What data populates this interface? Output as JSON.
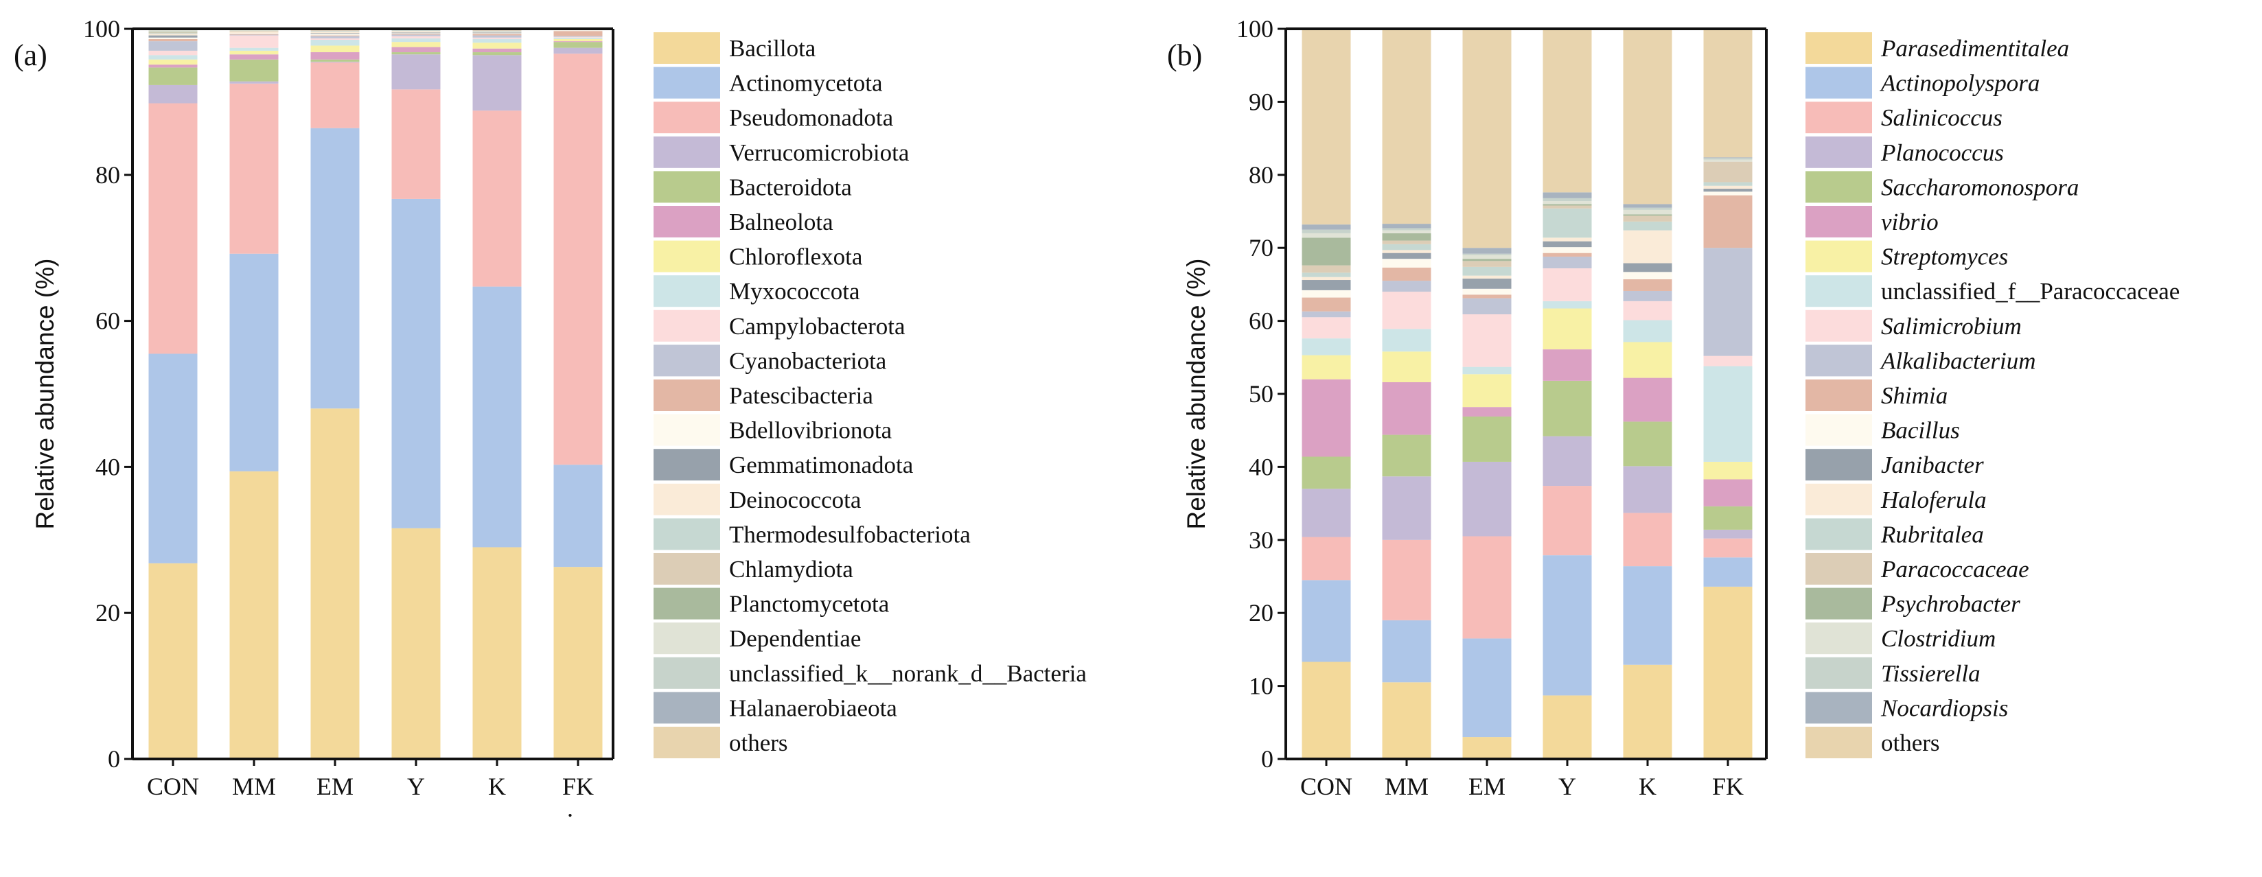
{
  "chart_data": [
    {
      "type": "bar",
      "stacked": true,
      "panel_label": "(a)",
      "ylabel": "Relative abundance (%)",
      "xlabel": "",
      "ylim": [
        0,
        100
      ],
      "yticks": [
        0,
        20,
        40,
        60,
        80,
        100
      ],
      "categories": [
        "CON",
        "MM",
        "EM",
        "Y",
        "K",
        "FK"
      ],
      "legend_position": "right",
      "legend_italic": false,
      "stray_mark": ".",
      "series": [
        {
          "name": "Bacillota",
          "color": "#F3D99A",
          "values": [
            26.8,
            39.4,
            48.0,
            31.6,
            29.0,
            26.3
          ]
        },
        {
          "name": "Actinomycetota",
          "color": "#AEC6E8",
          "values": [
            28.7,
            29.8,
            38.4,
            45.1,
            35.7,
            14.0
          ]
        },
        {
          "name": "Pseudomonadota",
          "color": "#F7BCB8",
          "values": [
            34.3,
            23.3,
            9.0,
            15.0,
            24.1,
            56.3
          ]
        },
        {
          "name": "Verrucomicrobiota",
          "color": "#C4BAD6",
          "values": [
            2.5,
            0.3,
            0.1,
            4.8,
            7.6,
            0.8
          ]
        },
        {
          "name": "Bacteroidota",
          "color": "#B8CB8D",
          "values": [
            2.4,
            3.0,
            0.3,
            0.3,
            0.4,
            0.8
          ]
        },
        {
          "name": "Balneolota",
          "color": "#DBA1C3",
          "values": [
            0.4,
            0.7,
            1.0,
            0.7,
            0.5,
            0.1
          ]
        },
        {
          "name": "Chloroflexota",
          "color": "#F8F1A5",
          "values": [
            0.7,
            0.5,
            0.9,
            0.7,
            0.8,
            0.3
          ]
        },
        {
          "name": "Myxococcota",
          "color": "#CDE5E7",
          "values": [
            0.6,
            0.4,
            0.8,
            0.5,
            0.5,
            0.2
          ]
        },
        {
          "name": "Campylobacterota",
          "color": "#FCDCDC",
          "values": [
            0.6,
            1.7,
            0.2,
            0.3,
            0.2,
            0.1
          ]
        },
        {
          "name": "Cyanobacteriota",
          "color": "#C0C5D6",
          "values": [
            1.3,
            0.1,
            0.3,
            0.2,
            0.3,
            0.1
          ]
        },
        {
          "name": "Patescibacteria",
          "color": "#E3B7A5",
          "values": [
            0.3,
            0.1,
            0.1,
            0.1,
            0.2,
            0.7
          ]
        },
        {
          "name": "Bdellovibrionota",
          "color": "#FEFAEF",
          "values": [
            0.2,
            0.1,
            0.2,
            0.1,
            0.1,
            0.1
          ]
        },
        {
          "name": "Gemmatimonadota",
          "color": "#97A1AB",
          "values": [
            0.3,
            0.0,
            0.1,
            0.1,
            0.1,
            0.0
          ]
        },
        {
          "name": "Deinococcota",
          "color": "#FAEBD8",
          "values": [
            0.2,
            0.2,
            0.2,
            0.2,
            0.1,
            0.1
          ]
        },
        {
          "name": "Thermodesulfobacteriota",
          "color": "#C6D8D2",
          "values": [
            0.1,
            0.0,
            0.1,
            0.1,
            0.1,
            0.0
          ]
        },
        {
          "name": "Chlamydiota",
          "color": "#DCCDB6",
          "values": [
            0.1,
            0.1,
            0.1,
            0.1,
            0.1,
            0.1
          ]
        },
        {
          "name": "Planctomycetota",
          "color": "#A9BA9D",
          "values": [
            0.1,
            0.0,
            0.0,
            0.0,
            0.0,
            0.0
          ]
        },
        {
          "name": "Dependentiae",
          "color": "#E0E3D6",
          "values": [
            0.2,
            0.2,
            0.1,
            0.1,
            0.1,
            0.0
          ]
        },
        {
          "name": "unclassified_k__norank_d__Bacteria",
          "color": "#C7D3CB",
          "values": [
            0.1,
            0.0,
            0.1,
            0.0,
            0.0,
            0.0
          ]
        },
        {
          "name": "Halanaerobiaeota",
          "color": "#A8B3BF",
          "values": [
            0.1,
            0.0,
            0.0,
            0.0,
            0.0,
            0.0
          ]
        },
        {
          "name": "others",
          "color": "#E8D4AE",
          "values": [
            0.0,
            0.1,
            0.0,
            0.0,
            0.0,
            0.0
          ]
        }
      ]
    },
    {
      "type": "bar",
      "stacked": true,
      "panel_label": "(b)",
      "ylabel": "Relative abundance (%)",
      "xlabel": "",
      "ylim": [
        0,
        100
      ],
      "yticks": [
        0,
        10,
        20,
        30,
        40,
        50,
        60,
        70,
        80,
        90,
        100
      ],
      "categories": [
        "CON",
        "MM",
        "EM",
        "Y",
        "K",
        "FK"
      ],
      "legend_position": "right",
      "legend_italic": true,
      "series": [
        {
          "name": "Parasedimentitalea",
          "color": "#F3D99A",
          "values": [
            13.3,
            10.5,
            3.0,
            8.7,
            12.9,
            23.6
          ]
        },
        {
          "name": "Actinopolyspora",
          "color": "#AEC6E8",
          "values": [
            11.2,
            8.5,
            13.5,
            19.2,
            13.5,
            4.0
          ]
        },
        {
          "name": "Salinicoccus",
          "color": "#F7BCB8",
          "values": [
            5.9,
            11.0,
            14.0,
            9.5,
            7.3,
            2.6
          ]
        },
        {
          "name": "Planococcus",
          "color": "#C4BAD6",
          "values": [
            6.6,
            8.7,
            10.2,
            6.8,
            6.4,
            1.2
          ]
        },
        {
          "name": "Saccharomonospora",
          "color": "#B8CB8D",
          "values": [
            4.4,
            5.7,
            6.2,
            7.6,
            6.1,
            3.2
          ]
        },
        {
          "name": "vibrio",
          "color": "#DBA1C3",
          "values": [
            10.6,
            7.2,
            1.3,
            4.3,
            6.0,
            3.7
          ]
        },
        {
          "name": "Streptomyces",
          "color": "#F8F1A5",
          "values": [
            3.3,
            4.2,
            4.5,
            5.6,
            4.9,
            2.4
          ]
        },
        {
          "name": "unclassified_f__Paracoccaceae",
          "color": "#CDE5E7",
          "values": [
            2.3,
            3.1,
            1.0,
            1.0,
            3.0,
            13.1
          ],
          "italic": false
        },
        {
          "name": "Salimicrobium",
          "color": "#FCDCDC",
          "values": [
            2.9,
            5.1,
            7.2,
            4.5,
            2.6,
            1.4
          ]
        },
        {
          "name": "Alkalibacterium",
          "color": "#C0C5D6",
          "values": [
            0.8,
            1.5,
            2.2,
            1.6,
            1.4,
            14.8
          ]
        },
        {
          "name": "Shimia",
          "color": "#E3B7A5",
          "values": [
            1.9,
            1.8,
            0.5,
            0.5,
            1.6,
            7.2
          ]
        },
        {
          "name": "Bacillus",
          "color": "#FEFAEF",
          "values": [
            1.0,
            1.2,
            0.8,
            0.8,
            1.0,
            0.5
          ]
        },
        {
          "name": "Janibacter",
          "color": "#97A1AB",
          "values": [
            1.4,
            0.8,
            1.4,
            0.8,
            1.2,
            0.4
          ]
        },
        {
          "name": "Haloferula",
          "color": "#FAEBD8",
          "values": [
            0.4,
            0.4,
            0.4,
            0.5,
            4.5,
            0.4
          ]
        },
        {
          "name": "Rubritalea",
          "color": "#C6D8D2",
          "values": [
            0.6,
            0.8,
            1.2,
            4.0,
            1.2,
            0.5
          ]
        },
        {
          "name": "Paracoccaceae",
          "color": "#DCCDB6",
          "values": [
            1.0,
            0.5,
            0.8,
            0.4,
            0.8,
            2.8
          ]
        },
        {
          "name": "Psychrobacter",
          "color": "#A9BA9D",
          "values": [
            3.8,
            1.0,
            0.3,
            0.2,
            0.2,
            0.0
          ]
        },
        {
          "name": "Clostridium",
          "color": "#E0E3D6",
          "values": [
            0.6,
            0.4,
            0.5,
            0.4,
            0.6,
            0.3
          ]
        },
        {
          "name": "Tissierella",
          "color": "#C7D3CB",
          "values": [
            0.5,
            0.3,
            0.2,
            0.4,
            0.3,
            0.2
          ]
        },
        {
          "name": "Nocardiopsis",
          "color": "#A8B3BF",
          "values": [
            0.7,
            0.6,
            0.8,
            0.8,
            0.5,
            0.1
          ]
        },
        {
          "name": "others",
          "color": "#E8D4AE",
          "values": [
            26.8,
            26.7,
            30.0,
            22.4,
            24.0,
            17.6
          ],
          "italic": false
        }
      ]
    }
  ]
}
